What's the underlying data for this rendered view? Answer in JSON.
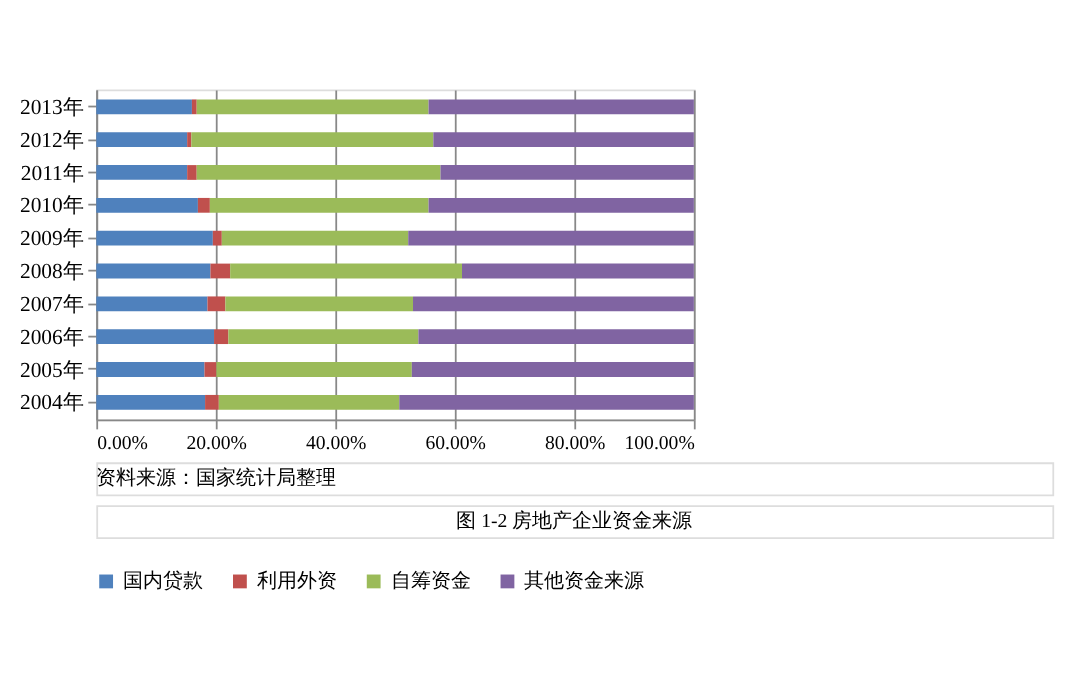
{
  "chart_data": {
    "type": "bar",
    "orientation": "horizontal",
    "stacked": true,
    "categories": [
      "2013年",
      "2012年",
      "2011年",
      "2010年",
      "2009年",
      "2008年",
      "2007年",
      "2006年",
      "2005年",
      "2004年"
    ],
    "series": [
      {
        "name": "国内贷款",
        "color": "#4f81bd",
        "values": [
          16.0,
          15.2,
          15.2,
          17.0,
          19.5,
          19.1,
          18.6,
          19.7,
          18.1,
          18.2
        ]
      },
      {
        "name": "利用外资",
        "color": "#c0504d",
        "values": [
          0.8,
          0.7,
          1.6,
          2.0,
          1.5,
          3.3,
          3.0,
          2.4,
          2.0,
          2.3
        ]
      },
      {
        "name": "自筹资金",
        "color": "#9bbb59",
        "values": [
          38.8,
          40.5,
          40.8,
          36.6,
          31.2,
          38.8,
          31.4,
          31.8,
          32.7,
          30.2
        ]
      },
      {
        "name": "其他资金来源",
        "color": "#8064a2",
        "values": [
          44.4,
          43.6,
          42.4,
          44.4,
          47.8,
          38.8,
          47.0,
          46.1,
          47.2,
          49.3
        ]
      }
    ],
    "xlim": [
      0,
      100
    ],
    "xticks": [
      {
        "value": 0,
        "label": "0.00%"
      },
      {
        "value": 20,
        "label": "20.00%"
      },
      {
        "value": 40,
        "label": "40.00%"
      },
      {
        "value": 60,
        "label": "60.00%"
      },
      {
        "value": 80,
        "label": "80.00%"
      },
      {
        "value": 100,
        "label": "100.00%"
      }
    ],
    "grid": "x",
    "legend": "bottom",
    "annotations": [
      "资料来源：国家统计局整理",
      "图 1-2  房地产企业资金来源"
    ]
  }
}
